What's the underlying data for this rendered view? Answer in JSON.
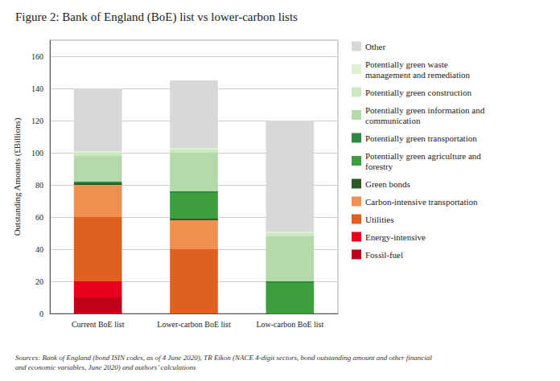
{
  "chart_data": {
    "type": "bar",
    "title": "Figure 2: Bank of England (BoE) list vs lower-carbon lists",
    "categories": [
      "Current BoE list",
      "Lower-carbon BoE list",
      "Low-carbon BoE list"
    ],
    "y_label": "Outstanding Amounts (£Billions)",
    "ylim": [
      0,
      170
    ],
    "yticks": [
      0,
      20,
      40,
      60,
      80,
      100,
      120,
      140,
      160
    ],
    "grid": true,
    "stacked": true,
    "legend": "right",
    "series": [
      {
        "name": "Fossil-fuel",
        "color": "#c0001a",
        "values": [
          10,
          0,
          0
        ]
      },
      {
        "name": "Energy-intensive",
        "color": "#e8001a",
        "values": [
          10,
          0,
          0
        ]
      },
      {
        "name": "Utilities",
        "color": "#e06020",
        "values": [
          40,
          40,
          0
        ]
      },
      {
        "name": "Carbon-intensive transportation",
        "color": "#f09050",
        "values": [
          20,
          18,
          0
        ]
      },
      {
        "name": "Green bonds",
        "color": "#2d5a27",
        "values": [
          1,
          1,
          0
        ]
      },
      {
        "name": "Potentially green agriculture and\nforestry",
        "color": "#3d9e3d",
        "values": [
          0,
          16,
          19
        ]
      },
      {
        "name": "Potentially green transportation",
        "color": "#2d8a3e",
        "values": [
          1,
          1,
          1
        ]
      },
      {
        "name": "Potentially green information and\ncommunication",
        "color": "#b5d9aa",
        "values": [
          16,
          24,
          28
        ]
      },
      {
        "name": "Potentially green construction",
        "color": "#cce8c0",
        "values": [
          2,
          2,
          2
        ]
      },
      {
        "name": "Potentially green waste\nmanagement and remediation",
        "color": "#ddf0d0",
        "values": [
          1,
          1,
          1
        ]
      },
      {
        "name": "Other",
        "color": "#d8d8d8",
        "values": [
          39,
          42,
          69
        ]
      }
    ],
    "annotations": [
      "Sources: Bank of England (bond ISIN codes, as of 4 June 2020), TR Eikon (NACE 4-digit sectors, bond outstanding amount and other financial\nand economic variables, June 2020) and authors’ calculations"
    ]
  }
}
